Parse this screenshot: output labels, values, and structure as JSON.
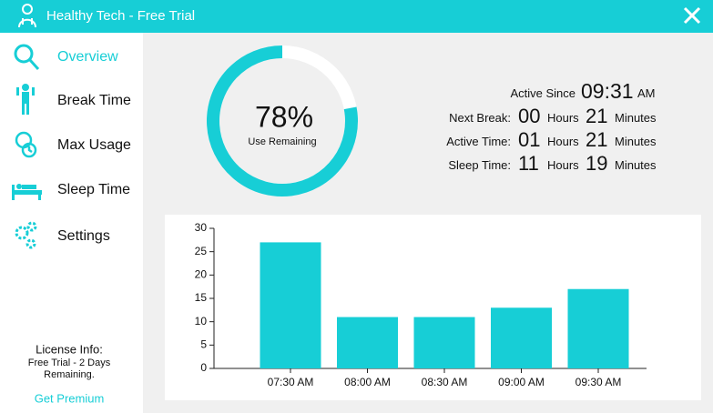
{
  "window": {
    "title": "Healthy Tech - Free Trial"
  },
  "sidebar": {
    "items": [
      "Overview",
      "Break Time",
      "Max Usage",
      "Sleep Time",
      "Settings"
    ],
    "license_label": "License Info:",
    "license_text": "Free Trial - 2 Days Remaining.",
    "premium_link": "Get Premium"
  },
  "usage": {
    "value": 78,
    "value_label": "78%",
    "caption": "Use Remaining"
  },
  "stats": {
    "active_since": {
      "label": "Active Since",
      "time": "09:31",
      "period": "AM"
    },
    "rows": [
      {
        "label": "Next Break:",
        "hours": "00",
        "hours_unit": "Hours",
        "minutes": "21",
        "minutes_unit": "Minutes"
      },
      {
        "label": "Active Time:",
        "hours": "01",
        "hours_unit": "Hours",
        "minutes": "21",
        "minutes_unit": "Minutes"
      },
      {
        "label": "Sleep Time:",
        "hours": "11",
        "hours_unit": "Hours",
        "minutes": "19",
        "minutes_unit": "Minutes"
      }
    ]
  },
  "chart_data": {
    "type": "bar",
    "categories": [
      "07:30 AM",
      "08:00 AM",
      "08:30 AM",
      "09:00 AM",
      "09:30 AM"
    ],
    "values": [
      27,
      11,
      11,
      13,
      17
    ],
    "color": "#17ced6",
    "ylim": [
      0,
      30
    ],
    "yticks": [
      0,
      5,
      10,
      15,
      20,
      25,
      30
    ]
  }
}
